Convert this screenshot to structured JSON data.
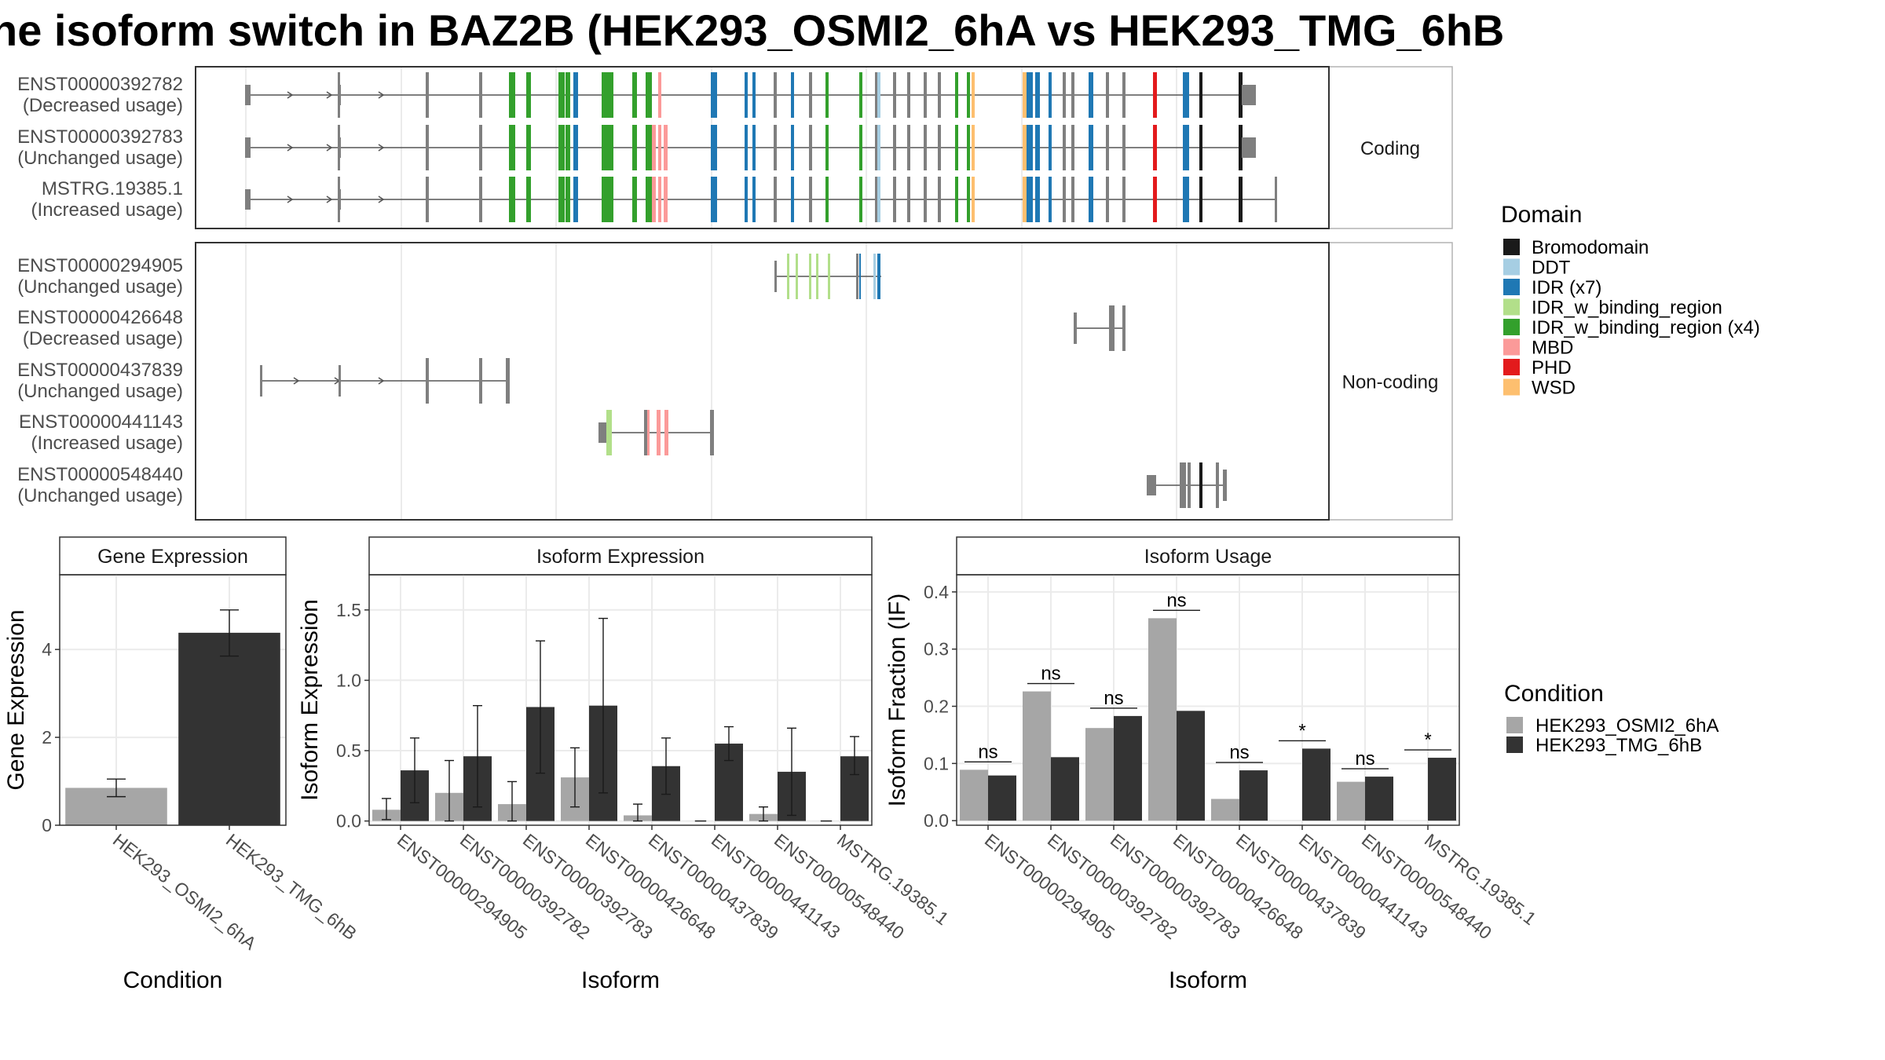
{
  "title": "he isoform switch in BAZ2B (HEK293_OSMI2_6hA vs HEK293_TMG_6hB",
  "colors": {
    "Bromodomain": "#1a1a1a",
    "DDT": "#a6cee3",
    "IDR (x7)": "#1f78b4",
    "IDR_w_binding_region": "#b2df8a",
    "IDR_w_binding_region (x4)": "#33a02c",
    "MBD": "#fb9a99",
    "PHD": "#e31a1c",
    "WSD": "#fdbf6f",
    "exon": "#7f7f7f",
    "condA": "#a6a6a6",
    "condB": "#333333"
  },
  "structure": {
    "panels": [
      "Coding",
      "Non-coding"
    ],
    "transcripts": [
      {
        "id": "ENST00000392782",
        "usage": "(Decreased usage)",
        "panel": "Coding"
      },
      {
        "id": "ENST00000392783",
        "usage": "(Unchanged usage)",
        "panel": "Coding"
      },
      {
        "id": "MSTRG.19385.1",
        "usage": "(Increased usage)",
        "panel": "Coding"
      },
      {
        "id": "ENST00000294905",
        "usage": "(Unchanged usage)",
        "panel": "Non-coding"
      },
      {
        "id": "ENST00000426648",
        "usage": "(Decreased usage)",
        "panel": "Non-coding"
      },
      {
        "id": "ENST00000437839",
        "usage": "(Unchanged usage)",
        "panel": "Non-coding"
      },
      {
        "id": "ENST00000441143",
        "usage": "(Increased usage)",
        "panel": "Non-coding"
      },
      {
        "id": "ENST00000548440",
        "usage": "(Unchanged usage)",
        "panel": "Non-coding"
      }
    ]
  },
  "legend_domain": {
    "title": "Domain",
    "items": [
      "Bromodomain",
      "DDT",
      "IDR (x7)",
      "IDR_w_binding_region",
      "IDR_w_binding_region (x4)",
      "MBD",
      "PHD",
      "WSD"
    ]
  },
  "legend_condition": {
    "title": "Condition",
    "items": [
      "HEK293_OSMI2_6hA",
      "HEK293_TMG_6hB"
    ]
  },
  "chart_data": [
    {
      "type": "bar",
      "title": "Gene Expression",
      "xlabel": "Condition",
      "ylabel": "Gene Expression",
      "categories": [
        "HEK293_OSMI2_6hA",
        "HEK293_TMG_6hB"
      ],
      "values": [
        0.85,
        4.38
      ],
      "error_low": [
        0.65,
        3.85
      ],
      "error_high": [
        1.05,
        4.9
      ],
      "ylim": [
        0,
        5.7
      ],
      "yticks": [
        0,
        2,
        4
      ]
    },
    {
      "type": "bar",
      "title": "Isoform Expression",
      "xlabel": "Isoform",
      "ylabel": "Isoform Expression",
      "categories": [
        "ENST00000294905",
        "ENST00000392782",
        "ENST00000392783",
        "ENST00000426648",
        "ENST00000437839",
        "ENST00000441143",
        "ENST00000548440",
        "MSTRG.19385.1"
      ],
      "series": [
        {
          "name": "HEK293_OSMI2_6hA",
          "values": [
            0.08,
            0.2,
            0.12,
            0.31,
            0.04,
            0.0,
            0.05,
            0.0
          ],
          "error_low": [
            0.01,
            0.0,
            0.0,
            0.1,
            0.0,
            0.0,
            0.0,
            0.0
          ],
          "error_high": [
            0.16,
            0.43,
            0.28,
            0.52,
            0.12,
            0.0,
            0.1,
            0.0
          ]
        },
        {
          "name": "HEK293_TMG_6hB",
          "values": [
            0.36,
            0.46,
            0.81,
            0.82,
            0.39,
            0.55,
            0.35,
            0.46
          ],
          "error_low": [
            0.13,
            0.1,
            0.34,
            0.2,
            0.19,
            0.43,
            0.04,
            0.33
          ],
          "error_high": [
            0.59,
            0.82,
            1.28,
            1.44,
            0.59,
            0.67,
            0.66,
            0.6
          ]
        }
      ],
      "ylim": [
        -0.03,
        1.75
      ],
      "yticks": [
        0.0,
        0.5,
        1.0,
        1.5
      ]
    },
    {
      "type": "bar",
      "title": "Isoform Usage",
      "xlabel": "Isoform",
      "ylabel": "Isoform Fraction (IF)",
      "categories": [
        "ENST00000294905",
        "ENST00000392782",
        "ENST00000392783",
        "ENST00000426648",
        "ENST00000437839",
        "ENST00000441143",
        "ENST00000548440",
        "MSTRG.19385.1"
      ],
      "series": [
        {
          "name": "HEK293_OSMI2_6hA",
          "values": [
            0.089,
            0.226,
            0.162,
            0.354,
            0.038,
            0.0,
            0.068,
            0.0
          ]
        },
        {
          "name": "HEK293_TMG_6hB",
          "values": [
            0.079,
            0.111,
            0.183,
            0.192,
            0.088,
            0.126,
            0.077,
            0.11
          ]
        }
      ],
      "significance": [
        "ns",
        "ns",
        "ns",
        "ns",
        "ns",
        "*",
        "ns",
        "*"
      ],
      "ylim": [
        -0.008,
        0.43
      ],
      "yticks": [
        0.0,
        0.1,
        0.2,
        0.3,
        0.4
      ]
    }
  ]
}
